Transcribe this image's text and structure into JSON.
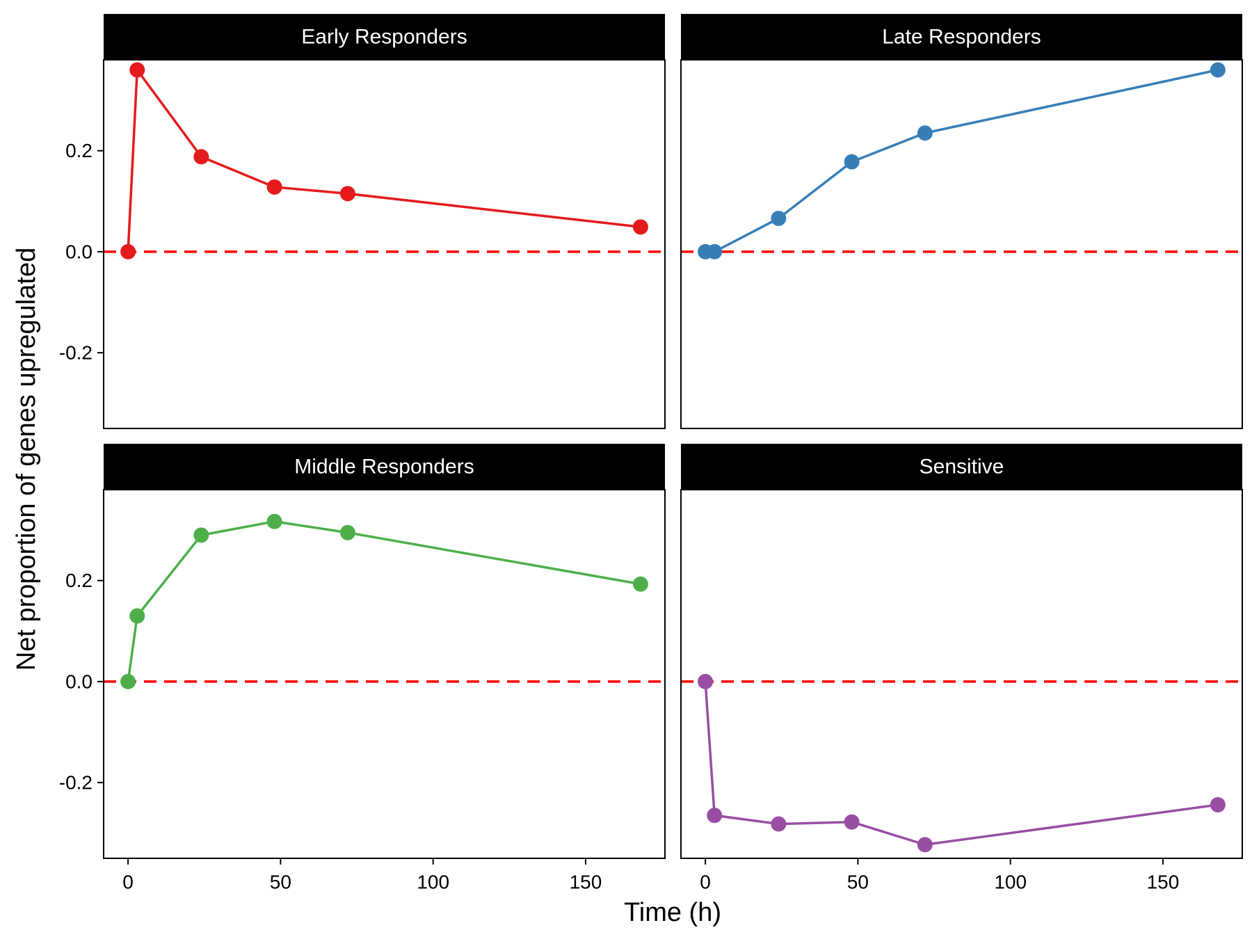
{
  "chart_data": {
    "type": "line",
    "layout": "facet-grid-2x2",
    "xlabel": "Time (h)",
    "ylabel": "Net proportion of genes upregulated",
    "xlim": [
      -8,
      176
    ],
    "ylim": [
      -0.35,
      0.38
    ],
    "x_ticks": [
      0,
      50,
      100,
      150
    ],
    "x_tick_labels": [
      "0",
      "50",
      "100",
      "150"
    ],
    "y_ticks": [
      -0.2,
      0.0,
      0.2
    ],
    "y_tick_labels": [
      "-0.2",
      "0.0",
      "0.2"
    ],
    "reference_line": {
      "y": 0,
      "style": "dashed",
      "color": "#ff0000"
    },
    "grid": false,
    "legend": "none",
    "panels": [
      {
        "title": "Early Responders",
        "color": "#e41a1c",
        "x": [
          0,
          3,
          24,
          48,
          72,
          168
        ],
        "y": [
          0.0,
          0.36,
          0.188,
          0.128,
          0.115,
          0.049
        ]
      },
      {
        "title": "Late Responders",
        "color": "#377eb8",
        "x": [
          0,
          3,
          24,
          48,
          72,
          168
        ],
        "y": [
          0.0,
          0.0,
          0.066,
          0.178,
          0.235,
          0.36
        ]
      },
      {
        "title": "Middle Responders",
        "color": "#4daf4a",
        "x": [
          0,
          3,
          24,
          48,
          72,
          168
        ],
        "y": [
          0.0,
          0.13,
          0.29,
          0.317,
          0.295,
          0.193
        ]
      },
      {
        "title": "Sensitive",
        "color": "#984ea3",
        "x": [
          0,
          3,
          24,
          48,
          72,
          168
        ],
        "y": [
          0.0,
          -0.265,
          -0.282,
          -0.278,
          -0.323,
          -0.244
        ]
      }
    ]
  }
}
